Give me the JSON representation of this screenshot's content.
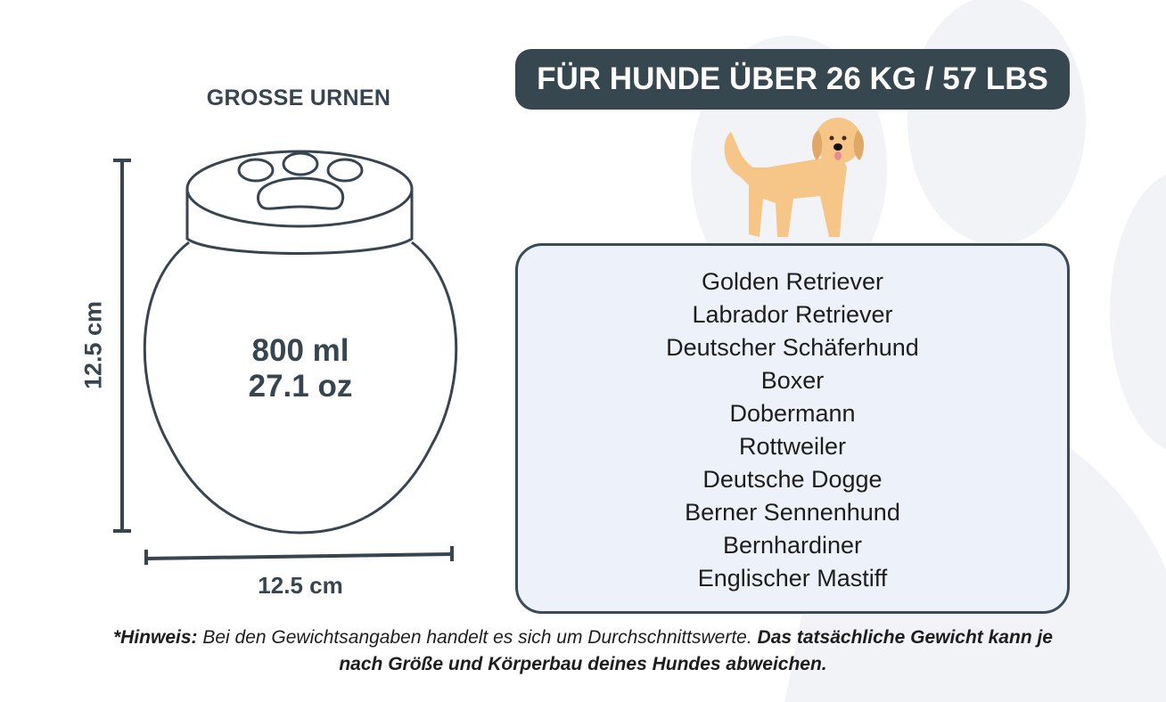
{
  "title": "GROSSE URNEN",
  "urn": {
    "height_label": "12.5 cm",
    "width_label": "12.5 cm",
    "capacity_ml": "800 ml",
    "capacity_oz": "27.1 oz"
  },
  "header": "FÜR HUNDE ÜBER 26 KG / 57 LBS",
  "breeds": [
    "Golden Retriever",
    "Labrador Retriever",
    "Deutscher Schäferhund",
    "Boxer",
    "Dobermann",
    "Rottweiler",
    "Deutsche Dogge",
    "Berner Sennenhund",
    "Bernhardiner",
    "Englischer Mastiff"
  ],
  "note": {
    "label": "*Hinweis:",
    "text": " Bei den Gewichtsangaben handelt es sich um Durchschnittswerte. ",
    "bold_text": "Das tatsächliche Gewicht kann je nach Größe und Körperbau deines Hundes abweichen."
  },
  "colors": {
    "dark": "#36474f",
    "box_bg": "#edf2fa",
    "dog": "#f5c687",
    "paw_bg": "#f2f3f6"
  },
  "icons": [
    "paw-print-background",
    "golden-retriever-illustration",
    "paw-urn-illustration"
  ]
}
